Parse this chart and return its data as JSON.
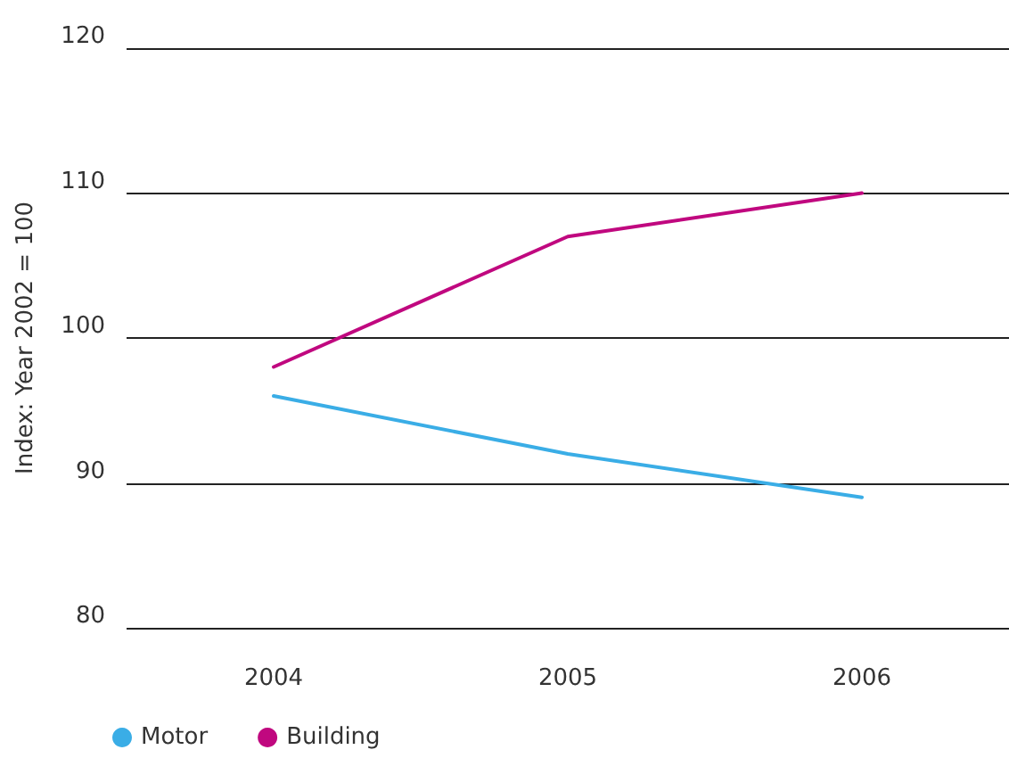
{
  "chart_data": {
    "type": "line",
    "ylabel": "Index: Year 2002 = 100",
    "categories": [
      "2004",
      "2005",
      "2006"
    ],
    "series": [
      {
        "name": "Motor",
        "color": "#3aade6",
        "values": [
          96,
          92,
          89
        ]
      },
      {
        "name": "Building",
        "color": "#c0087f",
        "values": [
          98,
          107,
          110
        ]
      }
    ],
    "ylim": [
      80,
      120
    ],
    "yticks": [
      80,
      90,
      100,
      110,
      120
    ],
    "grid": "y",
    "legend": "bottom left",
    "marker": "none",
    "line_style": "solid"
  }
}
